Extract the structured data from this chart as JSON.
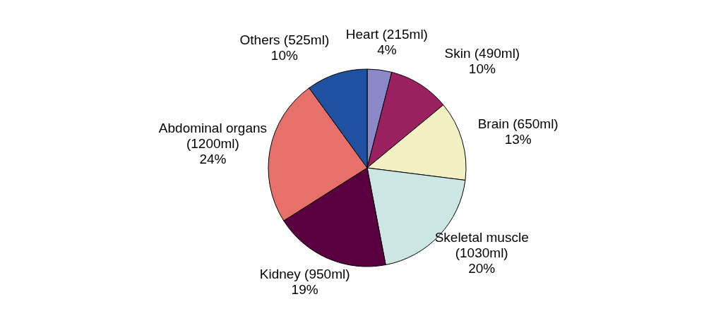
{
  "chart_data": {
    "type": "pie",
    "categories": [
      "Heart (215ml)",
      "Skin (490ml)",
      "Brain (650ml)",
      "Skeletal muscle (1030ml)",
      "Kidney (950ml)",
      "Abdominal organs (1200ml)",
      "Others (525ml)"
    ],
    "values": [
      4,
      10,
      13,
      20,
      19,
      24,
      10
    ],
    "value_labels": [
      "4%",
      "10%",
      "13%",
      "20%",
      "19%",
      "24%",
      "10%"
    ],
    "colors": [
      "#8b88c8",
      "#9b2060",
      "#f3f1c4",
      "#cce6e4",
      "#5a0040",
      "#e8706a",
      "#2050a0"
    ],
    "legend": false
  }
}
